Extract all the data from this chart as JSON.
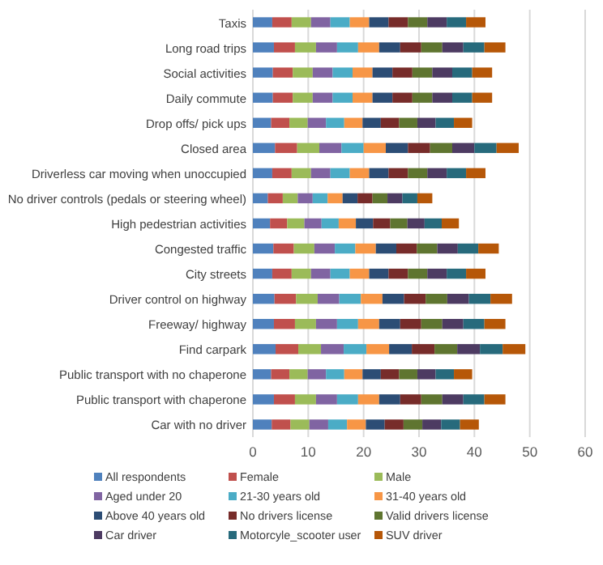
{
  "chart_data": {
    "type": "bar",
    "orientation": "horizontal",
    "stacked": true,
    "grid": "x",
    "legend": "bottom",
    "categories": [
      "Taxis",
      "Long road trips",
      "Social activities",
      "Daily commute",
      "Drop offs/ pick ups",
      "Closed area",
      "Driverless car moving when unoccupied",
      "No driver controls (pedals or steering wheel)",
      "High pedestrian activities",
      "Congested traffic",
      "City streets",
      "Driver control on highway",
      "Freeway/ highway",
      "Find carpark",
      "Public transport with no chaperone",
      "Public transport with chaperone",
      "Car with no driver"
    ],
    "xlim": [
      0,
      60
    ],
    "xticks": [
      0,
      10,
      20,
      30,
      40,
      50,
      60
    ],
    "series": [
      {
        "name": "All respondents",
        "color": "#4f81bd",
        "values": [
          3.5,
          3.8,
          3.6,
          3.6,
          3.3,
          4.0,
          3.5,
          2.7,
          3.1,
          3.7,
          3.5,
          3.9,
          3.8,
          4.1,
          3.3,
          3.8,
          3.4
        ]
      },
      {
        "name": "Female",
        "color": "#c0504d",
        "values": [
          3.5,
          3.8,
          3.6,
          3.6,
          3.3,
          4.0,
          3.5,
          2.7,
          3.1,
          3.7,
          3.5,
          3.9,
          3.8,
          4.1,
          3.3,
          3.8,
          3.4
        ]
      },
      {
        "name": "Male",
        "color": "#9bbb59",
        "values": [
          3.5,
          3.8,
          3.6,
          3.6,
          3.3,
          4.0,
          3.5,
          2.7,
          3.1,
          3.7,
          3.5,
          3.9,
          3.8,
          4.1,
          3.3,
          3.8,
          3.4
        ]
      },
      {
        "name": "Aged under 20",
        "color": "#8064a2",
        "values": [
          3.5,
          3.8,
          3.6,
          3.6,
          3.3,
          4.0,
          3.5,
          2.7,
          3.1,
          3.7,
          3.5,
          3.9,
          3.8,
          4.1,
          3.3,
          3.8,
          3.4
        ]
      },
      {
        "name": "21-30 years old",
        "color": "#4bacc6",
        "values": [
          3.5,
          3.8,
          3.6,
          3.6,
          3.3,
          4.0,
          3.5,
          2.7,
          3.1,
          3.7,
          3.5,
          3.9,
          3.8,
          4.1,
          3.3,
          3.8,
          3.4
        ]
      },
      {
        "name": "31-40 years old",
        "color": "#f79646",
        "values": [
          3.5,
          3.8,
          3.6,
          3.6,
          3.3,
          4.0,
          3.5,
          2.7,
          3.1,
          3.7,
          3.5,
          3.9,
          3.8,
          4.1,
          3.3,
          3.8,
          3.4
        ]
      },
      {
        "name": "Above 40 years old",
        "color": "#2c4d75",
        "values": [
          3.5,
          3.8,
          3.6,
          3.6,
          3.3,
          4.0,
          3.5,
          2.7,
          3.1,
          3.7,
          3.5,
          3.9,
          3.8,
          4.1,
          3.3,
          3.8,
          3.4
        ]
      },
      {
        "name": "No drivers license",
        "color": "#772c2a",
        "values": [
          3.5,
          3.8,
          3.6,
          3.6,
          3.3,
          4.0,
          3.5,
          2.7,
          3.1,
          3.7,
          3.5,
          3.9,
          3.8,
          4.1,
          3.3,
          3.8,
          3.4
        ]
      },
      {
        "name": "Valid drivers license",
        "color": "#5f7530",
        "values": [
          3.5,
          3.8,
          3.6,
          3.6,
          3.3,
          4.0,
          3.5,
          2.7,
          3.1,
          3.7,
          3.5,
          3.9,
          3.8,
          4.1,
          3.3,
          3.8,
          3.4
        ]
      },
      {
        "name": "Car driver",
        "color": "#4d3b62",
        "values": [
          3.5,
          3.8,
          3.6,
          3.6,
          3.3,
          4.0,
          3.5,
          2.7,
          3.1,
          3.7,
          3.5,
          3.9,
          3.8,
          4.1,
          3.3,
          3.8,
          3.4
        ]
      },
      {
        "name": "Motorcyle_scooter user",
        "color": "#276a7c",
        "values": [
          3.5,
          3.8,
          3.6,
          3.6,
          3.3,
          4.0,
          3.5,
          2.7,
          3.1,
          3.7,
          3.5,
          3.9,
          3.8,
          4.1,
          3.3,
          3.8,
          3.4
        ]
      },
      {
        "name": "SUV driver",
        "color": "#b65708",
        "values": [
          3.5,
          3.8,
          3.6,
          3.6,
          3.3,
          4.0,
          3.5,
          2.7,
          3.1,
          3.7,
          3.5,
          3.9,
          3.8,
          4.1,
          3.3,
          3.8,
          3.4
        ]
      }
    ]
  }
}
